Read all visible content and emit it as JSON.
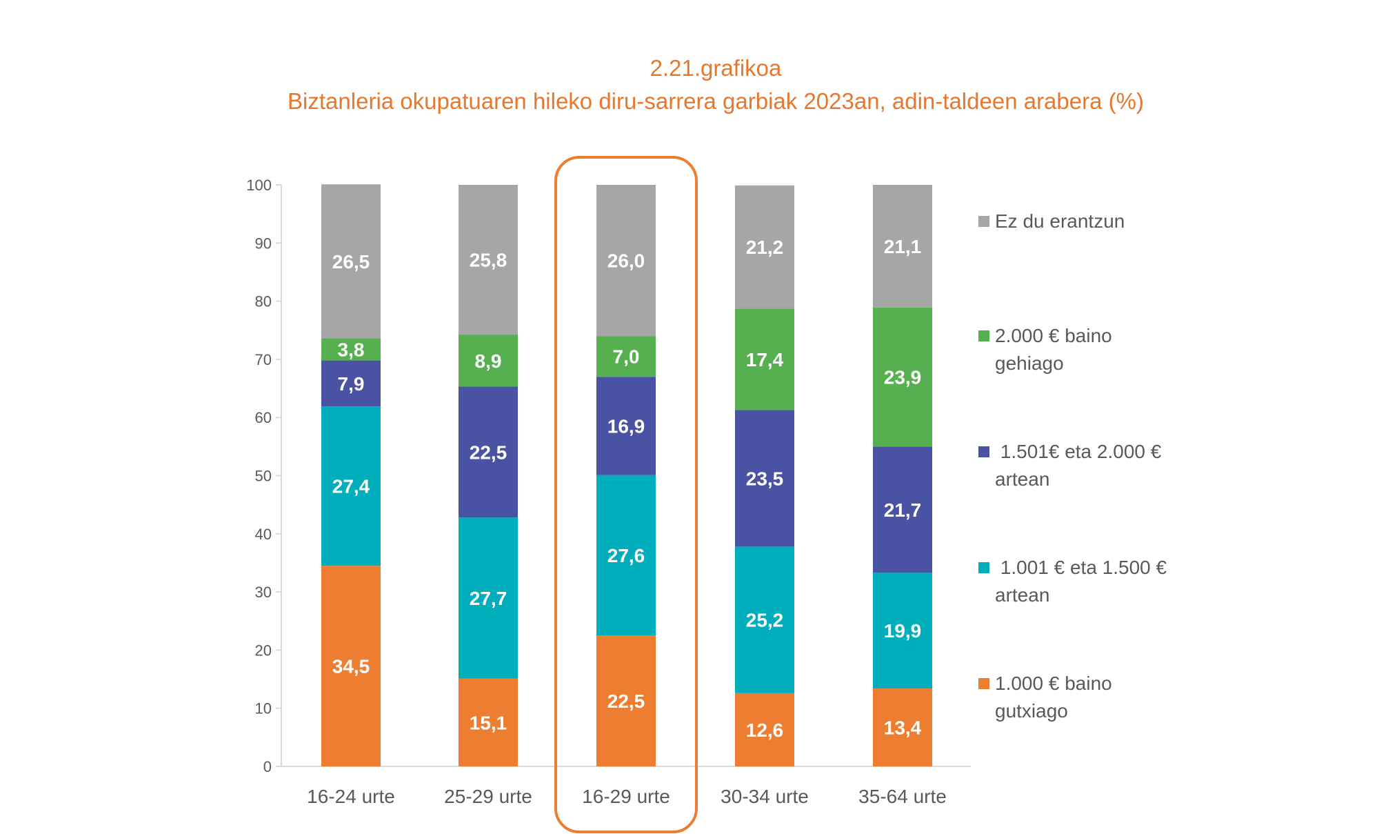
{
  "chart_data": {
    "type": "bar",
    "stacked": true,
    "title": "2.21.grafikoa",
    "subtitle": "Biztanleria okupatuaren hileko diru-sarrera garbiak 2023an, adin-taldeen arabera (%)",
    "categories": [
      "16-24 urte",
      "25-29 urte",
      "16-29 urte",
      "30-34 urte",
      "35-64 urte"
    ],
    "highlighted_category": "16-29 urte",
    "highlight_color": "#ed7d31",
    "ylim": [
      0,
      100
    ],
    "yticks": [
      0,
      10,
      20,
      30,
      40,
      50,
      60,
      70,
      80,
      90,
      100
    ],
    "grid": false,
    "legend_position": "right",
    "series": [
      {
        "name": "1.000 € baino gutxiago",
        "legend_lines": [
          "1.000 € baino",
          "gutxiago"
        ],
        "color": "#ed7d31",
        "values": [
          34.5,
          15.1,
          22.5,
          12.6,
          13.4
        ],
        "labels": [
          "34,5",
          "15,1",
          "22,5",
          "12,6",
          "13,4"
        ]
      },
      {
        "name": "1.001 € eta 1.500 € artean",
        "legend_lines": [
          " 1.001 € eta 1.500 €",
          "artean"
        ],
        "color": "#00adbb",
        "values": [
          27.4,
          27.7,
          27.6,
          25.2,
          19.9
        ],
        "labels": [
          "27,4",
          "27,7",
          "27,6",
          "25,2",
          "19,9"
        ]
      },
      {
        "name": "1.501€ eta 2.000 € artean",
        "legend_lines": [
          " 1.501€ eta 2.000 €",
          "artean"
        ],
        "color": "#4a52a3",
        "values": [
          7.9,
          22.5,
          16.9,
          23.5,
          21.7
        ],
        "labels": [
          "7,9",
          "22,5",
          "16,9",
          "23,5",
          "21,7"
        ]
      },
      {
        "name": "2.000 € baino gehiago",
        "legend_lines": [
          "2.000 € baino",
          "gehiago"
        ],
        "color": "#57b04f",
        "values": [
          3.8,
          8.9,
          7.0,
          17.4,
          23.9
        ],
        "labels": [
          "3,8",
          "8,9",
          "7,0",
          "17,4",
          "23,9"
        ]
      },
      {
        "name": "Ez du erantzun",
        "legend_lines": [
          "Ez du erantzun"
        ],
        "color": "#a6a6a6",
        "values": [
          26.5,
          25.8,
          26.0,
          21.2,
          21.1
        ],
        "labels": [
          "26,5",
          "25,8",
          "26,0",
          "21,2",
          "21,1"
        ]
      }
    ]
  }
}
